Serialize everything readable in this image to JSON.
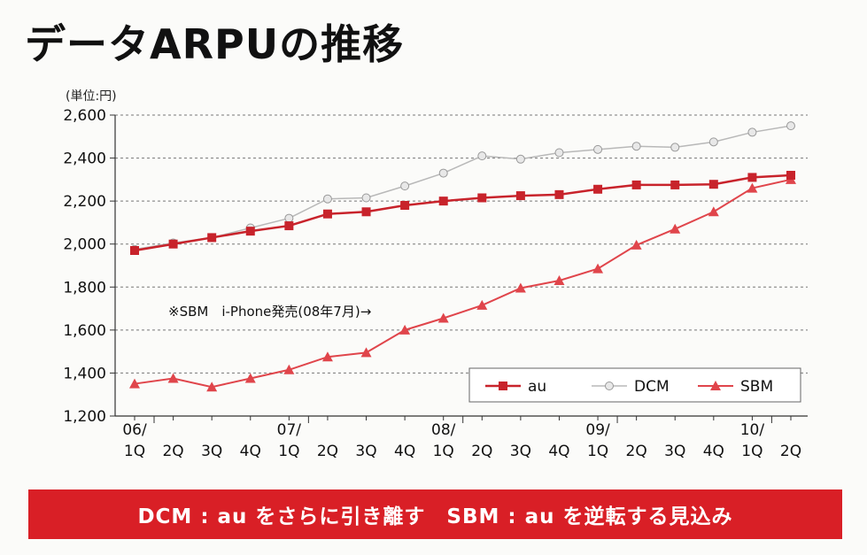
{
  "title": "データARPUの推移",
  "unit_label": "(単位:円)",
  "annotation": "※SBM　i-Phone発売(08年7月)→",
  "banner": "DCM : au をさらに引き離す　SBM : au を逆転する見込み",
  "colors": {
    "au": "#c8232b",
    "DCM": "#b8b8b8",
    "SBM": "#e0454b",
    "banner": "#d91f26"
  },
  "chart_data": {
    "type": "line",
    "ylim": [
      1200,
      2600
    ],
    "yticks": [
      "1,200",
      "1,400",
      "1,600",
      "1,800",
      "2,000",
      "2,200",
      "2,400",
      "2,600"
    ],
    "ytick_values": [
      1200,
      1400,
      1600,
      1800,
      2000,
      2200,
      2400,
      2600
    ],
    "grid": true,
    "legend_position": "bottom-right",
    "categories": [
      "06/1Q",
      "2Q",
      "3Q",
      "4Q",
      "07/1Q",
      "2Q",
      "3Q",
      "4Q",
      "08/1Q",
      "2Q",
      "3Q",
      "4Q",
      "09/1Q",
      "2Q",
      "3Q",
      "4Q",
      "10/1Q",
      "2Q"
    ],
    "year_labels": [
      "06/",
      "07/",
      "08/",
      "09/",
      "10/"
    ],
    "quarter_labels": [
      "1Q",
      "2Q",
      "3Q",
      "4Q",
      "1Q",
      "2Q",
      "3Q",
      "4Q",
      "1Q",
      "2Q",
      "3Q",
      "4Q",
      "1Q",
      "2Q",
      "3Q",
      "4Q",
      "1Q",
      "2Q"
    ],
    "series": [
      {
        "name": "au",
        "values": [
          1970,
          2000,
          2030,
          2060,
          2085,
          2140,
          2150,
          2180,
          2200,
          2215,
          2225,
          2230,
          2255,
          2275,
          2275,
          2278,
          2310,
          2320
        ]
      },
      {
        "name": "DCM",
        "values": [
          1975,
          2005,
          2030,
          2075,
          2120,
          2210,
          2215,
          2270,
          2330,
          2410,
          2395,
          2425,
          2440,
          2455,
          2450,
          2475,
          2520,
          2550
        ]
      },
      {
        "name": "SBM",
        "values": [
          1350,
          1375,
          1335,
          1375,
          1415,
          1475,
          1495,
          1600,
          1655,
          1715,
          1795,
          1830,
          1885,
          1995,
          2070,
          2150,
          2260,
          2300
        ]
      }
    ]
  }
}
